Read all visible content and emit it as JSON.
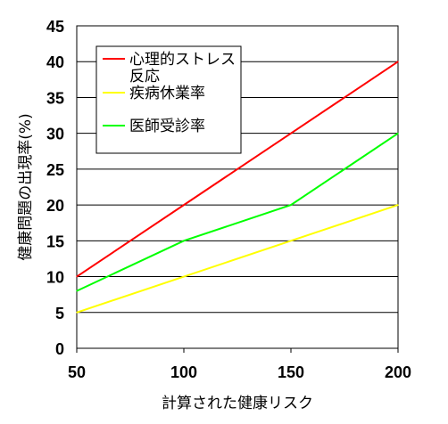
{
  "chart_data": {
    "type": "line",
    "title": "",
    "xlabel": "計算された健康リスク",
    "ylabel": "健康問題の出現率(%)",
    "x": [
      50,
      100,
      150,
      200
    ],
    "xlim": [
      50,
      200
    ],
    "ylim": [
      0,
      45
    ],
    "x_ticks": [
      50,
      100,
      150,
      200
    ],
    "y_ticks": [
      0,
      5,
      10,
      15,
      20,
      25,
      30,
      35,
      40,
      45
    ],
    "grid": true,
    "legend_position": "top-left",
    "series": [
      {
        "name": "心理的ストレス反応",
        "legend_lines": [
          "心理的ストレス",
          "反応"
        ],
        "color": "#ff0000",
        "values": [
          10,
          20,
          30,
          40
        ]
      },
      {
        "name": "疾病休業率",
        "legend_lines": [
          "疾病休業率"
        ],
        "color": "#ffff00",
        "values": [
          5,
          10,
          15,
          20
        ]
      },
      {
        "name": "医師受診率",
        "legend_lines": [
          "医師受診率"
        ],
        "color": "#00ff00",
        "values": [
          8,
          15,
          20,
          30
        ]
      }
    ]
  }
}
